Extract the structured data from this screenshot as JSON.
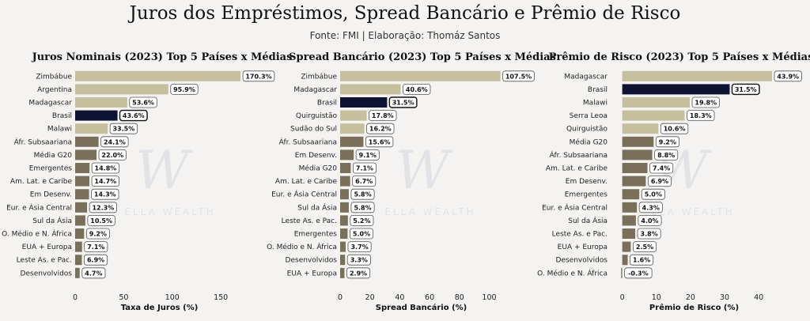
{
  "title": "Juros dos Empréstimos, Spread Bancário e Prêmio de Risco",
  "subtitle": "Fonte: FMI | Elaboração: Thomáz Santos",
  "watermark_text": "ELLA WEALTH",
  "colors": {
    "highlight": "#0d1330",
    "light": "#c6bf9d",
    "dark": "#7a705a",
    "background": "#f4f3f1"
  },
  "chart_data": [
    {
      "type": "bar",
      "orientation": "horizontal",
      "title": "Juros Nominais (2023) Top 5 Países x Médias",
      "xlabel": "Taxa de Juros (%)",
      "xlim": [
        0,
        180
      ],
      "xticks": [
        0,
        50,
        100,
        150
      ],
      "highlight": "Brasil",
      "categories": [
        "Zimbábue",
        "Argentina",
        "Madagascar",
        "Brasil",
        "Malawi",
        "Áfr. Subsaariana",
        "Média G20",
        "Emergentes",
        "Am. Lat. e Caribe",
        "Em Desenv.",
        "Eur. e Ásia Central",
        "Sul da Ásia",
        "O. Médio e N. África",
        "EUA + Europa",
        "Leste As. e Pac.",
        "Desenvolvidos"
      ],
      "values": [
        170.3,
        95.9,
        53.6,
        43.6,
        33.5,
        24.1,
        22.0,
        14.8,
        14.7,
        14.3,
        12.3,
        10.5,
        9.2,
        7.1,
        6.9,
        4.7
      ],
      "value_labels": [
        "170.3%",
        "95.9%",
        "53.6%",
        "43.6%",
        "33.5%",
        "24.1%",
        "22.0%",
        "14.8%",
        "14.7%",
        "14.3%",
        "12.3%",
        "10.5%",
        "9.2%",
        "7.1%",
        "6.9%",
        "4.7%"
      ],
      "groups": [
        "top",
        "top",
        "top",
        "highlight",
        "top",
        "avg",
        "avg",
        "avg",
        "avg",
        "avg",
        "avg",
        "avg",
        "avg",
        "avg",
        "avg",
        "avg"
      ]
    },
    {
      "type": "bar",
      "orientation": "horizontal",
      "title": "Spread Bancário (2023) Top 5 Países x Médias",
      "xlabel": "Spread Bancário (%)",
      "xlim": [
        0,
        113
      ],
      "xticks": [
        0,
        20,
        40,
        60,
        80,
        100
      ],
      "highlight": "Brasil",
      "categories": [
        "Zimbábue",
        "Madagascar",
        "Brasil",
        "Quirguistão",
        "Sudão do Sul",
        "Áfr. Subsaariana",
        "Em Desenv.",
        "Média G20",
        "Am. Lat. e Caribe",
        "Eur. e Ásia Central",
        "Sul da Ásia",
        "Leste As. e Pac.",
        "Emergentes",
        "O. Médio e N. África",
        "Desenvolvidos",
        "EUA + Europa"
      ],
      "values": [
        107.5,
        40.6,
        31.5,
        17.8,
        16.2,
        15.6,
        9.1,
        7.1,
        6.7,
        5.8,
        5.8,
        5.2,
        5.0,
        3.7,
        3.3,
        2.9
      ],
      "value_labels": [
        "107.5%",
        "40.6%",
        "31.5%",
        "17.8%",
        "16.2%",
        "15.6%",
        "9.1%",
        "7.1%",
        "6.7%",
        "5.8%",
        "5.8%",
        "5.2%",
        "5.0%",
        "3.7%",
        "3.3%",
        "2.9%"
      ],
      "groups": [
        "top",
        "top",
        "highlight",
        "top",
        "top",
        "avg",
        "avg",
        "avg",
        "avg",
        "avg",
        "avg",
        "avg",
        "avg",
        "avg",
        "avg",
        "avg"
      ]
    },
    {
      "type": "bar",
      "orientation": "horizontal",
      "title": "Prêmio de Risco (2023) Top 5 Países x Médias",
      "xlabel": "Prêmio de Risco (%)",
      "xlim": [
        -2,
        46
      ],
      "xticks": [
        0,
        10,
        20,
        30,
        40
      ],
      "highlight": "Brasil",
      "categories": [
        "Madagascar",
        "Brasil",
        "Malawi",
        "Serra Leoa",
        "Quirguistão",
        "Média G20",
        "Áfr. Subsaariana",
        "Am. Lat. e Caribe",
        "Em Desenv.",
        "Emergentes",
        "Eur. e Ásia Central",
        "Sul da Ásia",
        "Leste As. e Pac.",
        "EUA + Europa",
        "Desenvolvidos",
        "O. Médio e N. África"
      ],
      "values": [
        43.9,
        31.5,
        19.8,
        18.3,
        10.6,
        9.2,
        8.8,
        7.4,
        6.9,
        5.0,
        4.3,
        4.0,
        3.8,
        2.5,
        1.6,
        -0.3
      ],
      "value_labels": [
        "43.9%",
        "31.5%",
        "19.8%",
        "18.3%",
        "10.6%",
        "9.2%",
        "8.8%",
        "7.4%",
        "6.9%",
        "5.0%",
        "4.3%",
        "4.0%",
        "3.8%",
        "2.5%",
        "1.6%",
        "-0.3%"
      ],
      "groups": [
        "top",
        "highlight",
        "top",
        "top",
        "top",
        "avg",
        "avg",
        "avg",
        "avg",
        "avg",
        "avg",
        "avg",
        "avg",
        "avg",
        "avg",
        "avg"
      ]
    }
  ]
}
